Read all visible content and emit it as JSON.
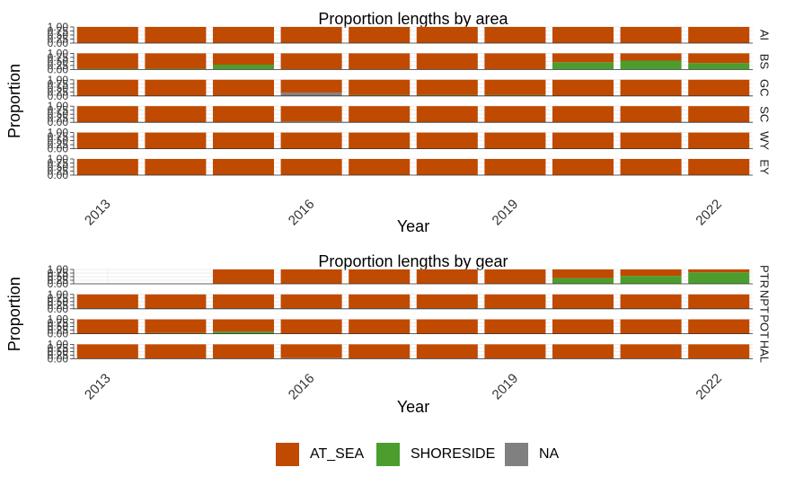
{
  "chart_data": [
    {
      "type": "bar",
      "stacked": true,
      "faceted": true,
      "title": "Proportion lengths by area",
      "xlabel": "Year",
      "ylabel": "Proportion",
      "ylim": [
        0,
        1
      ],
      "y_ticks": [
        "0.00",
        "0.25",
        "0.50",
        "0.75",
        "1.00"
      ],
      "x_ticks": [
        "2013",
        "2016",
        "2019",
        "2022"
      ],
      "categories": [
        "2013",
        "2014",
        "2015",
        "2016",
        "2017",
        "2018",
        "2019",
        "2020",
        "2021",
        "2022"
      ],
      "stack_order": [
        "AT_SEA",
        "SHORESIDE",
        "NA"
      ],
      "facets": [
        {
          "label": "AI",
          "series": [
            {
              "name": "AT_SEA",
              "values": [
                1,
                1,
                1,
                1,
                1,
                1,
                1,
                1,
                1,
                1
              ]
            },
            {
              "name": "SHORESIDE",
              "values": [
                0,
                0,
                0,
                0,
                0,
                0,
                0,
                0,
                0,
                0
              ]
            },
            {
              "name": "NA",
              "values": [
                0,
                0,
                0,
                0,
                0,
                0,
                0,
                0,
                0,
                0
              ]
            }
          ]
        },
        {
          "label": "BS",
          "series": [
            {
              "name": "AT_SEA",
              "values": [
                0.95,
                0.95,
                0.7,
                1,
                1,
                1,
                1,
                0.55,
                0.45,
                0.6
              ]
            },
            {
              "name": "SHORESIDE",
              "values": [
                0.05,
                0.05,
                0.3,
                0,
                0,
                0,
                0,
                0.45,
                0.55,
                0.4
              ]
            },
            {
              "name": "NA",
              "values": [
                0,
                0,
                0,
                0,
                0,
                0,
                0,
                0,
                0,
                0
              ]
            }
          ]
        },
        {
          "label": "GC",
          "series": [
            {
              "name": "AT_SEA",
              "values": [
                1,
                1,
                1,
                0.8,
                0.95,
                0.95,
                0.95,
                1,
                1,
                1
              ]
            },
            {
              "name": "SHORESIDE",
              "values": [
                0,
                0,
                0,
                0,
                0.05,
                0.05,
                0.05,
                0,
                0,
                0
              ]
            },
            {
              "name": "NA",
              "values": [
                0,
                0,
                0,
                0.2,
                0,
                0,
                0,
                0,
                0,
                0
              ]
            }
          ]
        },
        {
          "label": "SC",
          "series": [
            {
              "name": "AT_SEA",
              "values": [
                1,
                1,
                1,
                0.95,
                1,
                1,
                1,
                1,
                1,
                1
              ]
            },
            {
              "name": "SHORESIDE",
              "values": [
                0,
                0,
                0,
                0,
                0,
                0,
                0,
                0,
                0,
                0
              ]
            },
            {
              "name": "NA",
              "values": [
                0,
                0,
                0,
                0.05,
                0,
                0,
                0,
                0,
                0,
                0
              ]
            }
          ]
        },
        {
          "label": "WY",
          "series": [
            {
              "name": "AT_SEA",
              "values": [
                1,
                1,
                1,
                1,
                1,
                1,
                1,
                1,
                1,
                1
              ]
            },
            {
              "name": "SHORESIDE",
              "values": [
                0,
                0,
                0,
                0,
                0,
                0,
                0,
                0,
                0,
                0
              ]
            },
            {
              "name": "NA",
              "values": [
                0,
                0,
                0,
                0,
                0,
                0,
                0,
                0,
                0,
                0
              ]
            }
          ]
        },
        {
          "label": "EY",
          "series": [
            {
              "name": "AT_SEA",
              "values": [
                1,
                1,
                1,
                1,
                1,
                1,
                1,
                1,
                1,
                1
              ]
            },
            {
              "name": "SHORESIDE",
              "values": [
                0,
                0,
                0,
                0,
                0,
                0,
                0,
                0,
                0,
                0
              ]
            },
            {
              "name": "NA",
              "values": [
                0,
                0,
                0,
                0,
                0,
                0,
                0,
                0,
                0,
                0
              ]
            }
          ]
        }
      ]
    },
    {
      "type": "bar",
      "stacked": true,
      "faceted": true,
      "title": "Proportion lengths by gear",
      "xlabel": "Year",
      "ylabel": "Proportion",
      "ylim": [
        0,
        1
      ],
      "y_ticks": [
        "0.00",
        "0.25",
        "0.50",
        "0.75",
        "1.00"
      ],
      "x_ticks": [
        "2013",
        "2016",
        "2019",
        "2022"
      ],
      "categories": [
        "2013",
        "2014",
        "2015",
        "2016",
        "2017",
        "2018",
        "2019",
        "2020",
        "2021",
        "2022"
      ],
      "stack_order": [
        "AT_SEA",
        "SHORESIDE",
        "NA"
      ],
      "facets": [
        {
          "label": "PTR",
          "series": [
            {
              "name": "AT_SEA",
              "values": [
                null,
                null,
                1,
                1,
                1,
                1,
                1,
                0.6,
                0.45,
                0.2
              ]
            },
            {
              "name": "SHORESIDE",
              "values": [
                null,
                null,
                0,
                0,
                0,
                0,
                0,
                0.4,
                0.55,
                0.8
              ]
            },
            {
              "name": "NA",
              "values": [
                null,
                null,
                0,
                0,
                0,
                0,
                0,
                0,
                0,
                0
              ]
            }
          ]
        },
        {
          "label": "NPT",
          "series": [
            {
              "name": "AT_SEA",
              "values": [
                0.95,
                1,
                0.95,
                0.95,
                0.95,
                0.95,
                0.95,
                1,
                1,
                1
              ]
            },
            {
              "name": "SHORESIDE",
              "values": [
                0,
                0,
                0,
                0,
                0,
                0,
                0,
                0,
                0,
                0
              ]
            },
            {
              "name": "NA",
              "values": [
                0.05,
                0,
                0.05,
                0.05,
                0.05,
                0.05,
                0.05,
                0,
                0,
                0
              ]
            }
          ]
        },
        {
          "label": "POT",
          "series": [
            {
              "name": "AT_SEA",
              "values": [
                1,
                0.95,
                0.85,
                1,
                1,
                1,
                1,
                1,
                1,
                1
              ]
            },
            {
              "name": "SHORESIDE",
              "values": [
                0,
                0.05,
                0.15,
                0,
                0,
                0,
                0,
                0,
                0,
                0
              ]
            },
            {
              "name": "NA",
              "values": [
                0,
                0,
                0,
                0,
                0,
                0,
                0,
                0,
                0,
                0
              ]
            }
          ]
        },
        {
          "label": "HAL",
          "series": [
            {
              "name": "AT_SEA",
              "values": [
                1,
                1,
                1,
                0.95,
                1,
                1,
                1,
                1,
                1,
                1
              ]
            },
            {
              "name": "SHORESIDE",
              "values": [
                0,
                0,
                0,
                0,
                0,
                0,
                0,
                0,
                0,
                0
              ]
            },
            {
              "name": "NA",
              "values": [
                0,
                0,
                0,
                0.05,
                0,
                0,
                0,
                0,
                0,
                0
              ]
            }
          ]
        }
      ]
    }
  ],
  "legend": {
    "items": [
      {
        "label": "AT_SEA",
        "color": "#C04A00"
      },
      {
        "label": "SHORESIDE",
        "color": "#4B9E2E"
      },
      {
        "label": "NA",
        "color": "#808080"
      }
    ]
  },
  "colors": {
    "AT_SEA": "#C04A00",
    "SHORESIDE": "#4B9E2E",
    "NA": "#808080"
  }
}
